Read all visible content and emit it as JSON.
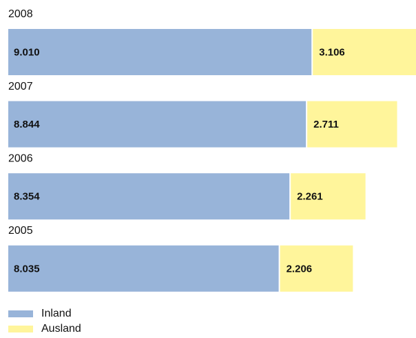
{
  "chart_data": {
    "type": "stacked-barh",
    "categories": [
      "2008",
      "2007",
      "2006",
      "2005"
    ],
    "series": [
      {
        "name": "Inland",
        "color": "#98b4d9",
        "values": [
          9010,
          8844,
          8354,
          8035
        ],
        "value_labels": [
          "9.010",
          "8.844",
          "8.354",
          "8.035"
        ]
      },
      {
        "name": "Ausland",
        "color": "#fff59b",
        "values": [
          3106,
          2711,
          2261,
          2206
        ],
        "value_labels": [
          "3.106",
          "2.711",
          "2.261",
          "2.206"
        ]
      }
    ]
  }
}
